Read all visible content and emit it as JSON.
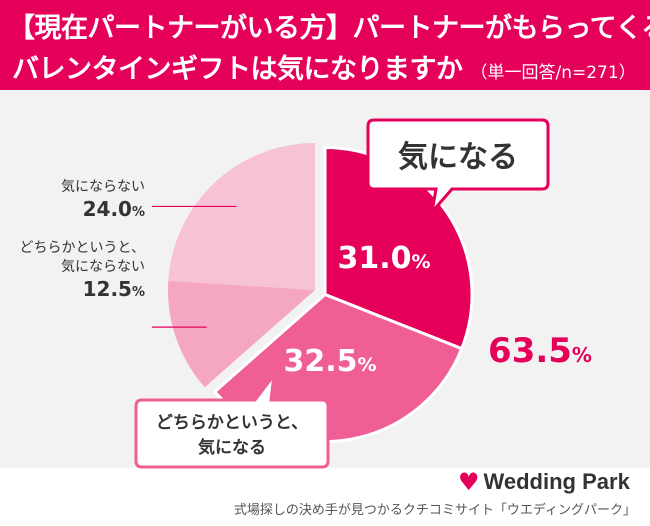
{
  "header": {
    "title_line1": "【現在パートナーがいる方】パートナーがもらってくる",
    "title_line2": "バレンタインギフトは気になりますか",
    "subtitle": "（単一回答/n=271）"
  },
  "chart_data": {
    "type": "pie",
    "title": "【現在パートナーがいる方】パートナーがもらってくるバレンタインギフトは気になりますか",
    "subtitle": "（単一回答/n=271）",
    "series": [
      {
        "name": "気になる",
        "value": 31.0,
        "value_label": "31.0",
        "color": "#e5005a",
        "exploded": true
      },
      {
        "name": "どちらかというと、気になる",
        "value": 32.5,
        "value_label": "32.5",
        "color": "#ef5f95",
        "exploded": true
      },
      {
        "name": "どちらかというと、気にならない",
        "value": 12.5,
        "value_label": "12.5",
        "color": "#f5a6c3",
        "exploded": false
      },
      {
        "name": "気にならない",
        "value": 24.0,
        "value_label": "24.0",
        "color": "#f8c2d6",
        "exploded": false
      }
    ],
    "percent_sign": "%",
    "combined_total": {
      "value_label": "63.5",
      "color": "#e5005a"
    },
    "start_angle_deg": 0,
    "direction": "clockwise"
  },
  "labels": {
    "kininaru": "気になる",
    "dochira_kininaru_line1": "どちらかというと、",
    "dochira_kininaru_line2": "気になる",
    "kininaranai": "気にならない",
    "dochira_kininaranai_line1": "どちらかというと、",
    "dochira_kininaranai_line2": "気にならない"
  },
  "footer": {
    "brand": "Wedding Park",
    "tagline": "式場探しの決め手が見つかるクチコミサイト「ウエディングパーク」"
  },
  "colors": {
    "accent": "#e5005a",
    "background_band": "#f2f2f2"
  },
  "icons": {
    "logo": "heart-icon"
  }
}
